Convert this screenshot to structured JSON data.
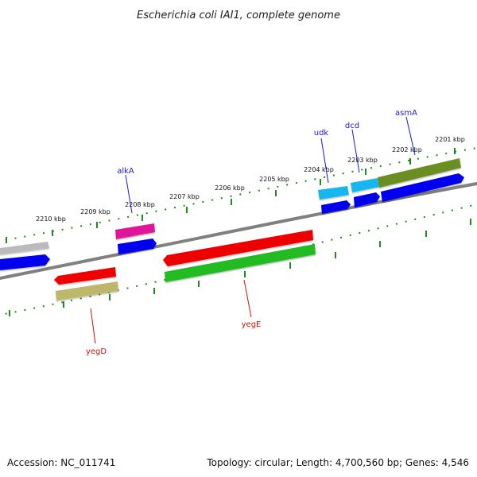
{
  "title": "Escherichia coli IAI1, complete genome",
  "accession": "Accession: NC_011741",
  "topology": "Topology: circular; Length: 4,700,560 bp; Genes: 4,546",
  "kbp_labels": [
    "2210 kbp",
    "2209 kbp",
    "2208 kbp",
    "2207 kbp",
    "2206 kbp",
    "2205 kbp",
    "2204 kbp",
    "2203 kbp",
    "2202 kbp",
    "2201 kbp"
  ],
  "genes_top": [
    {
      "name": "alkA",
      "color": "#1a1acc"
    },
    {
      "name": "udk",
      "color": "#1a1acc"
    },
    {
      "name": "dcd",
      "color": "#1a1acc"
    },
    {
      "name": "asmA",
      "color": "#1a1acc"
    }
  ],
  "genes_bottom": [
    {
      "name": "yegD",
      "color": "#cc1111"
    },
    {
      "name": "yegE",
      "color": "#cc1111"
    }
  ],
  "colors": {
    "backbone": "#808080",
    "tick": "#1f8a1f",
    "blue": "#0000ee",
    "cyan": "#19b6ee",
    "olive": "#6b8e23",
    "magenta": "#e0189a",
    "red": "#ee0000",
    "green": "#22bb22",
    "khaki": "#bdb76b",
    "grey": "#bbbbbb"
  }
}
